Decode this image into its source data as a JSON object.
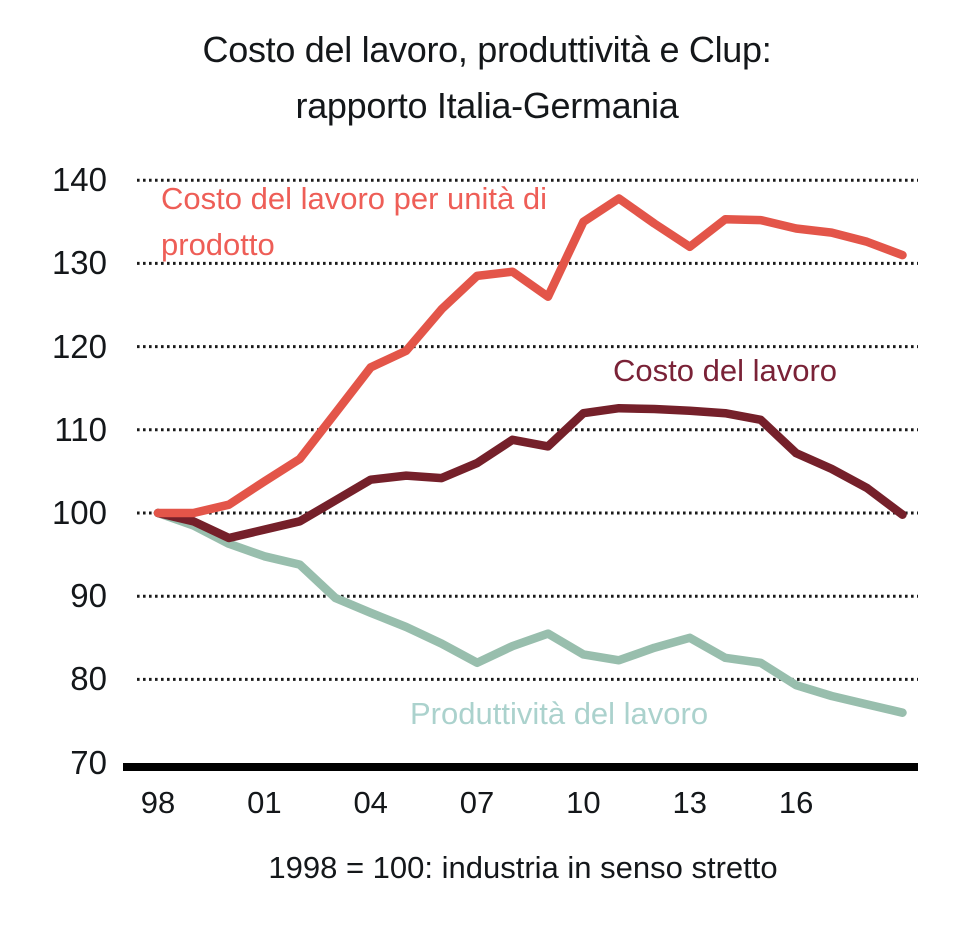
{
  "title": {
    "line1": "Costo del lavoro, produttività e Clup:",
    "line2": "rapporto Italia-Germania"
  },
  "caption": "1998 = 100: industria in senso stretto",
  "colors": {
    "background": "#ffffff",
    "text": "#14171a",
    "gridline": "#1a1a1a",
    "axis": "#000000"
  },
  "chart_data": {
    "type": "line",
    "x": [
      1998,
      1999,
      2000,
      2001,
      2002,
      2003,
      2004,
      2005,
      2006,
      2007,
      2008,
      2009,
      2010,
      2011,
      2012,
      2013,
      2014,
      2015,
      2016,
      2017,
      2018,
      2019
    ],
    "x_tick_labels": [
      "98",
      "01",
      "04",
      "07",
      "10",
      "13",
      "16"
    ],
    "x_tick_years": [
      1998,
      2001,
      2004,
      2007,
      2010,
      2013,
      2016
    ],
    "y_ticks": [
      70,
      80,
      90,
      100,
      110,
      120,
      130,
      140
    ],
    "ylim": [
      70,
      140
    ],
    "grid": "horizontal-dotted",
    "legend_position": "inline-labels",
    "series": [
      {
        "name": "Costo del lavoro per unità di prodotto",
        "label_line1": "Costo del lavoro per unità di",
        "label_line2": "prodotto",
        "line_color": "#e35549",
        "label_color": "#ee5e57",
        "values": [
          100,
          100,
          101,
          103.8,
          106.5,
          112,
          117.5,
          119.5,
          124.5,
          128.5,
          129,
          126,
          135,
          137.8,
          134.8,
          132,
          135.3,
          135.2,
          134.2,
          133.7,
          132.6,
          131
        ]
      },
      {
        "name": "Costo del lavoro",
        "line_color": "#75202a",
        "label_color": "#7a2237",
        "values": [
          100,
          99,
          97,
          98,
          99,
          101.5,
          104,
          104.5,
          104.2,
          106,
          108.8,
          108,
          112,
          112.6,
          112.5,
          112.3,
          112,
          111.2,
          107.2,
          105.3,
          103,
          99.8
        ]
      },
      {
        "name": "Produttività del lavoro",
        "line_color": "#98bead",
        "label_color": "#abd2cd",
        "values": [
          100,
          98.5,
          96.3,
          94.8,
          93.8,
          89.8,
          88,
          86.3,
          84.3,
          82,
          84,
          85.5,
          83,
          82.3,
          83.8,
          85,
          82.6,
          82,
          79.3,
          78,
          77,
          76
        ]
      }
    ]
  }
}
